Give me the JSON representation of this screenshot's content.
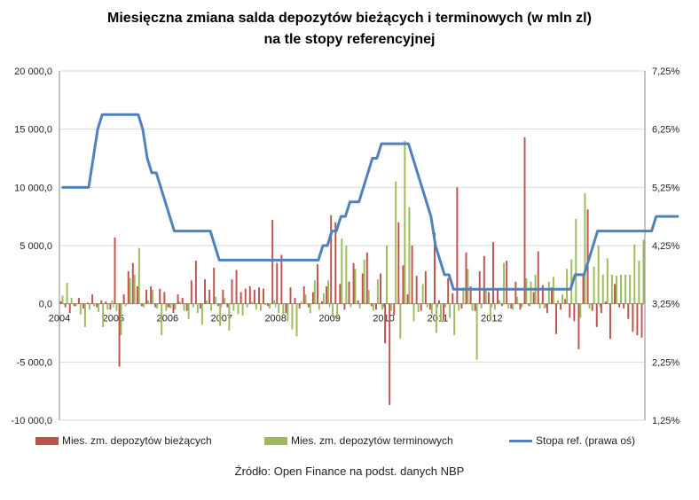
{
  "chart_data": {
    "type": "bar",
    "title": "Miesięczna zmiana salda depozytów bieżących i terminowych (w mln zl)",
    "subtitle": "na tle stopy referencyjnej",
    "source": "Źródło: Open Finance na podst. danych NBP",
    "x_start": "2004-01",
    "x_labels": [
      "2004",
      "2005",
      "2006",
      "2007",
      "2008",
      "2009",
      "2010",
      "2011",
      "2012"
    ],
    "y_left": {
      "ticks": [
        "20 000,0",
        "15 000,0",
        "10 000,0",
        "5 000,0",
        "0,0",
        "-5 000,0",
        "-10 000,0"
      ],
      "lim": [
        -10000,
        20000
      ]
    },
    "y_right": {
      "ticks": [
        "7,25%",
        "6,25%",
        "5,25%",
        "4,25%",
        "3,25%",
        "2,25%",
        "1,25%"
      ],
      "lim": [
        1.25,
        7.25
      ]
    },
    "grid": "horizontal",
    "legend_position": "bottom",
    "series": [
      {
        "name": "Mies. zm. depozytów bieżących",
        "kind": "bar",
        "axis": "left",
        "color": "#c0504d",
        "values": [
          200,
          -300,
          -800,
          -200,
          500,
          -400,
          100,
          800,
          -300,
          300,
          200,
          -500,
          5700,
          -5400,
          800,
          2800,
          3500,
          1500,
          -200,
          1200,
          1500,
          -300,
          1300,
          1000,
          -300,
          -800,
          800,
          500,
          -600,
          2000,
          3700,
          -400,
          2100,
          1200,
          3100,
          -200,
          1200,
          -300,
          2100,
          2900,
          1000,
          1300,
          1500,
          1200,
          1400,
          1300,
          -200,
          7200,
          3500,
          4200,
          -800,
          1400,
          500,
          -400,
          1500,
          -300,
          1000,
          3400,
          200,
          1500,
          7600,
          7000,
          1700,
          -500,
          1900,
          3500,
          300,
          2600,
          4400,
          -200,
          -500,
          2600,
          -3400,
          -8700,
          -1000,
          7000,
          3300,
          800,
          5000,
          2400,
          -600,
          2800,
          -500,
          6100,
          300,
          -1400,
          2200,
          900,
          10000,
          -400,
          4400,
          1500,
          -600,
          2800,
          4100,
          1000,
          5300,
          1300,
          -200,
          3700,
          -400,
          1900,
          -500,
          14300,
          -200,
          1000,
          4500,
          1600,
          -800,
          1400,
          -2600,
          -500,
          400,
          -1200,
          -1500,
          -3900,
          2400,
          8100,
          -600,
          -2000,
          -800,
          200,
          -3000,
          1700,
          -300,
          -400,
          -1300,
          -2400,
          -2700,
          -2900
        ]
      },
      {
        "name": "Mies. zm. depozytów terminowych",
        "kind": "bar",
        "axis": "left",
        "color": "#9bbb59",
        "values": [
          700,
          1800,
          500,
          -200,
          -900,
          -2000,
          -500,
          -200,
          -700,
          -2000,
          -500,
          300,
          -600,
          -2700,
          -200,
          2200,
          2500,
          4800,
          -300,
          300,
          1200,
          -400,
          -2700,
          -600,
          -400,
          -500,
          200,
          -600,
          -1300,
          -300,
          -800,
          -1800,
          300,
          -600,
          600,
          -1900,
          500,
          -2300,
          -600,
          -900,
          -1000,
          -300,
          200,
          -500,
          -600,
          -100,
          -400,
          300,
          -800,
          -1000,
          -1500,
          -2200,
          -2800,
          200,
          800,
          -800,
          2000,
          -500,
          900,
          2000,
          -1200,
          -1200,
          5600,
          5000,
          -300,
          3000,
          -400,
          3800,
          1200,
          -600,
          2100,
          -500,
          5000,
          -600,
          10500,
          -3000,
          14000,
          8300,
          -1500,
          -700,
          1700,
          -300,
          -900,
          -2500,
          -1500,
          -300,
          -1200,
          -2700,
          -600,
          1400,
          3000,
          -600,
          -4800,
          -400,
          1200,
          -1500,
          -500,
          300,
          3500,
          -400,
          -500,
          600,
          -300,
          2200,
          1900,
          2500,
          -400,
          -400,
          1900,
          2300,
          300,
          800,
          3000,
          3800,
          7300,
          -1200,
          9500,
          -400,
          3200,
          5000,
          2500,
          3900,
          2500,
          2400,
          2500,
          2500,
          2500,
          5100,
          3700,
          5500
        ]
      },
      {
        "name": "Stopa ref. (prawa oś)",
        "kind": "line",
        "axis": "right",
        "color": "#4f81bd",
        "values": [
          5.25,
          5.25,
          5.25,
          5.25,
          5.25,
          5.25,
          5.25,
          5.75,
          6.25,
          6.5,
          6.5,
          6.5,
          6.5,
          6.5,
          6.5,
          6.5,
          6.5,
          6.5,
          6.25,
          5.75,
          5.5,
          5.5,
          5.25,
          5.0,
          4.75,
          4.5,
          4.5,
          4.5,
          4.5,
          4.5,
          4.5,
          4.5,
          4.5,
          4.5,
          4.25,
          4.0,
          4.0,
          4.0,
          4.0,
          4.0,
          4.0,
          4.0,
          4.0,
          4.0,
          4.0,
          4.0,
          4.0,
          4.0,
          4.0,
          4.0,
          4.0,
          4.0,
          4.0,
          4.0,
          4.0,
          4.0,
          4.0,
          4.0,
          4.25,
          4.25,
          4.5,
          4.5,
          4.75,
          4.75,
          5.0,
          5.0,
          5.0,
          5.25,
          5.5,
          5.75,
          5.75,
          6.0,
          6.0,
          6.0,
          6.0,
          6.0,
          6.0,
          6.0,
          5.75,
          5.5,
          5.25,
          5.0,
          4.75,
          4.25,
          4.0,
          3.75,
          3.75,
          3.5,
          3.5,
          3.5,
          3.5,
          3.5,
          3.5,
          3.5,
          3.5,
          3.5,
          3.5,
          3.5,
          3.5,
          3.5,
          3.5,
          3.5,
          3.5,
          3.5,
          3.5,
          3.5,
          3.5,
          3.5,
          3.5,
          3.5,
          3.5,
          3.5,
          3.5,
          3.5,
          3.75,
          3.75,
          3.75,
          4.0,
          4.25,
          4.5,
          4.5,
          4.5,
          4.5,
          4.5,
          4.5,
          4.5,
          4.5,
          4.5,
          4.5,
          4.5,
          4.5,
          4.5,
          4.75,
          4.75,
          4.75,
          4.75,
          4.75,
          4.75
        ]
      }
    ]
  }
}
